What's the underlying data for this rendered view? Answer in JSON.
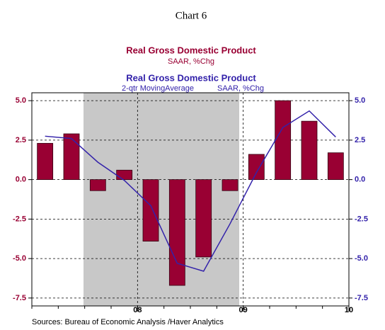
{
  "chart_data": {
    "type": "bar",
    "title": "Chart 6",
    "categories": [
      null,
      null,
      null,
      null,
      null,
      null,
      null,
      null,
      null,
      null,
      null,
      null
    ],
    "xtick_labels": [
      "08",
      "09",
      "10"
    ],
    "series": [
      {
        "name": "Real Gross Domestic Product",
        "subtitle": "SAAR, %Chg",
        "type": "bar",
        "color": "#990033",
        "values": [
          2.3,
          2.9,
          -0.7,
          0.6,
          -3.9,
          -6.7,
          -4.9,
          -0.7,
          1.6,
          5.0,
          3.7,
          1.7
        ]
      },
      {
        "name": "Real Gross Domestic Product",
        "subtitle": [
          "2-qtr MovingAverage",
          "SAAR, %Chg"
        ],
        "type": "line",
        "color": "#3322aa",
        "axis": "y2",
        "values": [
          2.75,
          2.6,
          1.1,
          -0.05,
          -1.65,
          -5.3,
          -5.8,
          -2.8,
          0.45,
          3.3,
          4.35,
          2.7
        ]
      }
    ],
    "ylim": [
      -8,
      5.5
    ],
    "yticks": [
      {
        "value": 5,
        "label": "5.0"
      },
      {
        "value": 2.5,
        "label": "2.5"
      },
      {
        "value": 0,
        "label": "0.0"
      },
      {
        "value": -2.5,
        "label": "-2.5"
      },
      {
        "value": -5,
        "label": "-5.0"
      },
      {
        "value": -7.5,
        "label": "-7.5"
      }
    ],
    "y2lim": [
      -8,
      5.5
    ],
    "y2ticks": [
      {
        "value": 5,
        "label": "5.0"
      },
      {
        "value": 2.5,
        "label": "2.5"
      },
      {
        "value": 0,
        "label": "0.0"
      },
      {
        "value": -2.5,
        "label": "-2.5"
      },
      {
        "value": -5,
        "label": "-5.0"
      },
      {
        "value": -7.5,
        "label": "-7.5"
      }
    ],
    "grid": true,
    "source": "Sources:  Bureau of Economic Analysis /Haver Analytics"
  }
}
